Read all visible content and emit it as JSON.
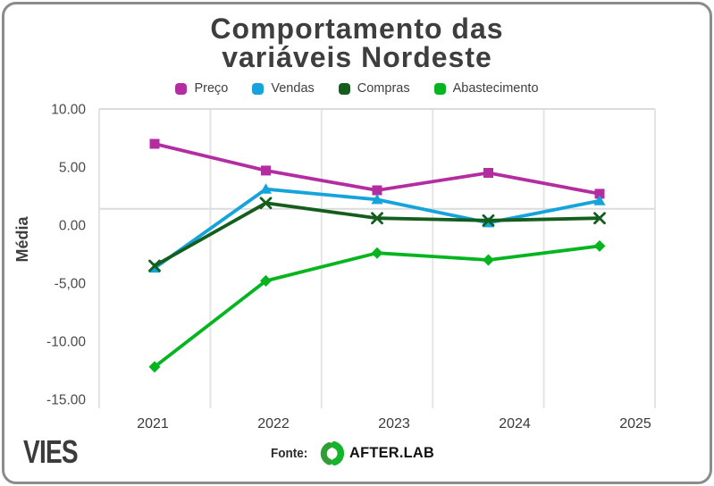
{
  "header": {
    "title": "Comportamento das variáveis Nordeste"
  },
  "chart_data": {
    "type": "line",
    "title": "Comportamento das variáveis Nordeste",
    "x_labels": [
      "2021",
      "2022",
      "2023",
      "2024",
      "2025"
    ],
    "series": [
      {
        "name": "Preço",
        "color": "#b42da0",
        "marker": "square",
        "values": [
          7.0,
          4.7,
          3.0,
          4.5,
          2.7
        ]
      },
      {
        "name": "Vendas",
        "color": "#14a3db",
        "marker": "triangle",
        "values": [
          -3.7,
          3.1,
          2.2,
          0.2,
          2.1
        ]
      },
      {
        "name": "Compras",
        "color": "#155d1d",
        "marker": "x",
        "values": [
          -3.5,
          1.9,
          0.6,
          0.4,
          0.6
        ]
      },
      {
        "name": "Abastecimento",
        "color": "#05b51f",
        "marker": "diamond",
        "values": [
          -12.2,
          -4.8,
          -2.4,
          -3.0,
          -1.8
        ]
      }
    ],
    "ylabel": "Média",
    "xlabel": "",
    "yticks": [
      {
        "label": "10.00",
        "value": 10
      },
      {
        "label": "5.00",
        "value": 5
      },
      {
        "label": "0.00",
        "value": 0
      },
      {
        "label": "-5,00",
        "value": -5
      },
      {
        "label": "-10.00",
        "value": -10
      },
      {
        "label": "-15.00",
        "value": -15
      }
    ],
    "ylim": [
      -15.8,
      10
    ],
    "h_gridline_values": [
      10,
      1.4
    ],
    "grid": {
      "vertical": true
    },
    "legend_position": "top",
    "grid_color": "#e2e2e2"
  },
  "footer": {
    "brand": "VIES",
    "source_label": "Fonte:",
    "source_name": "AFTER.LAB"
  }
}
